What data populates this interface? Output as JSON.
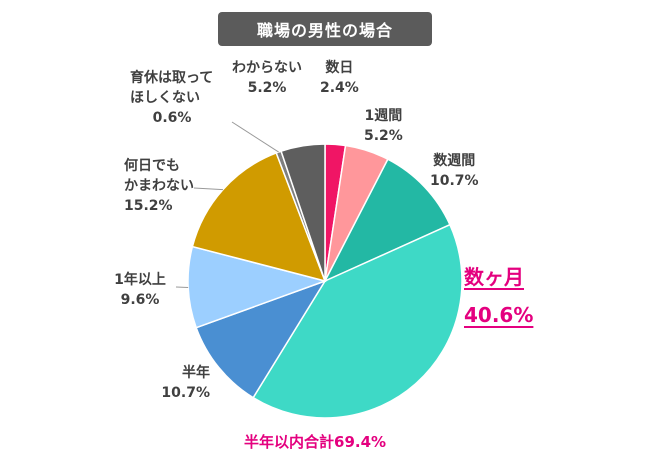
{
  "title": "職場の男性の場合",
  "total_label": "半年以内合計69.4%",
  "chart_data": {
    "type": "pie",
    "title": "職場の男性の場合",
    "slices": [
      {
        "label": "数日",
        "value": 2.4,
        "pct_text": "2.4%",
        "color": "#f01565"
      },
      {
        "label": "1週間",
        "value": 5.2,
        "pct_text": "5.2%",
        "color": "#ff979b"
      },
      {
        "label": "数週間",
        "value": 10.7,
        "pct_text": "10.7%",
        "color": "#23b8a4"
      },
      {
        "label": "数ヶ月",
        "value": 40.6,
        "pct_text": "40.6%",
        "color": "#3ed9c6"
      },
      {
        "label": "半年",
        "value": 10.7,
        "pct_text": "10.7%",
        "color": "#4a8fd2"
      },
      {
        "label": "1年以上",
        "value": 9.6,
        "pct_text": "9.6%",
        "color": "#9ccfff"
      },
      {
        "label": "何日でもかまわない",
        "label_lines": [
          "何日でも",
          "かまわない"
        ],
        "value": 15.2,
        "pct_text": "15.2%",
        "color": "#d09b00"
      },
      {
        "label": "育休は取ってほしくない",
        "label_lines": [
          "育休は取って",
          "ほしくない"
        ],
        "value": 0.6,
        "pct_text": "0.6%",
        "color": "#7f7f7f"
      },
      {
        "label": "わからない",
        "value": 5.2,
        "pct_text": "5.2%",
        "color": "#5e5e5e"
      }
    ]
  }
}
